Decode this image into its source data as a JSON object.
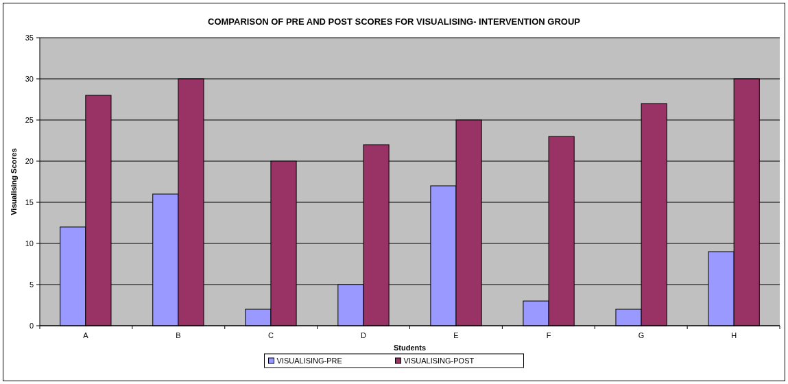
{
  "chart_data": {
    "type": "bar",
    "title": "COMPARISON OF PRE AND POST SCORES FOR VISUALISING- INTERVENTION GROUP",
    "xlabel": "Students",
    "ylabel": "Visualising Scores",
    "categories": [
      "A",
      "B",
      "C",
      "D",
      "E",
      "F",
      "G",
      "H"
    ],
    "series": [
      {
        "name": "VISUALISING-PRE",
        "color": "#9999ff",
        "values": [
          12,
          16,
          2,
          5,
          17,
          3,
          2,
          9
        ]
      },
      {
        "name": "VISUALISING-POST",
        "color": "#993366",
        "values": [
          28,
          30,
          20,
          22,
          25,
          23,
          27,
          30
        ]
      }
    ],
    "ylim": [
      0,
      35
    ],
    "yticks": [
      0,
      5,
      10,
      15,
      20,
      25,
      30,
      35
    ],
    "grid": "y",
    "legend": "bottom"
  }
}
